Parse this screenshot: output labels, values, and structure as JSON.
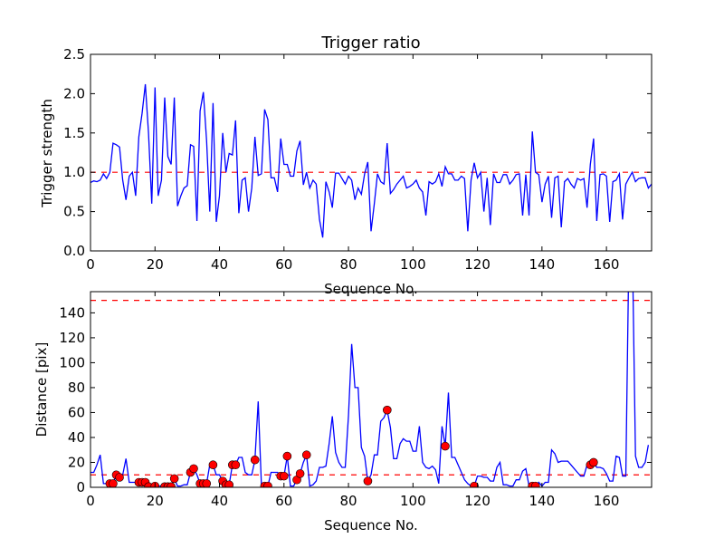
{
  "chart_data": [
    {
      "type": "line",
      "title": "Trigger ratio",
      "xlabel": "Sequence No.",
      "ylabel": "Trigger strength",
      "xlim": [
        0,
        174
      ],
      "ylim": [
        0,
        2.5
      ],
      "xticks": [
        "0",
        "20",
        "40",
        "60",
        "80",
        "100",
        "120",
        "140",
        "160"
      ],
      "yticks": [
        "0.0",
        "0.5",
        "1.0",
        "1.5",
        "2.0",
        "2.5"
      ],
      "threshold": 1.0,
      "colors": {
        "line": "#0000ff",
        "threshold": "#ff0000"
      },
      "values": [
        0.87,
        0.89,
        0.88,
        0.9,
        0.98,
        0.92,
        1.0,
        1.37,
        1.35,
        1.32,
        0.9,
        0.65,
        0.95,
        1.0,
        0.7,
        1.45,
        1.75,
        2.12,
        1.5,
        0.6,
        2.08,
        0.7,
        0.9,
        1.95,
        1.2,
        1.1,
        1.95,
        0.57,
        0.7,
        0.8,
        0.83,
        1.35,
        1.33,
        0.38,
        1.78,
        2.02,
        1.4,
        0.5,
        1.88,
        0.37,
        0.7,
        1.5,
        1.0,
        1.24,
        1.22,
        1.66,
        0.48,
        0.9,
        0.93,
        0.5,
        0.8,
        1.45,
        0.96,
        0.98,
        1.8,
        1.67,
        0.93,
        0.93,
        0.75,
        1.43,
        1.1,
        1.1,
        0.95,
        0.95,
        1.27,
        1.4,
        0.84,
        1.0,
        0.8,
        0.9,
        0.85,
        0.4,
        0.17,
        0.88,
        0.75,
        0.55,
        0.99,
        0.99,
        0.92,
        0.85,
        0.95,
        0.9,
        0.65,
        0.8,
        0.72,
        0.98,
        1.13,
        0.25,
        0.6,
        0.98,
        0.88,
        0.85,
        1.37,
        0.73,
        0.78,
        0.85,
        0.9,
        0.95,
        0.8,
        0.82,
        0.85,
        0.9,
        0.8,
        0.75,
        0.45,
        0.88,
        0.85,
        0.88,
        0.98,
        0.82,
        1.07,
        0.98,
        0.98,
        0.9,
        0.9,
        0.95,
        0.92,
        0.25,
        0.9,
        1.12,
        0.93,
        1.0,
        0.5,
        0.93,
        0.33,
        0.98,
        0.87,
        0.87,
        0.97,
        0.97,
        0.85,
        0.9,
        0.97,
        0.98,
        0.45,
        0.97,
        0.45,
        1.52,
        1.0,
        0.97,
        0.62,
        0.85,
        0.95,
        0.42,
        0.93,
        0.95,
        0.3,
        0.88,
        0.92,
        0.85,
        0.8,
        0.92,
        0.9,
        0.92,
        0.55,
        1.1,
        1.43,
        0.38,
        0.97,
        0.98,
        0.95,
        0.37,
        0.88,
        0.9,
        0.98,
        0.4,
        0.85,
        0.93,
        1.0,
        0.88,
        0.92,
        0.93,
        0.93,
        0.8,
        0.85
      ]
    },
    {
      "type": "line",
      "xlabel": "Sequence No.",
      "ylabel": "Distance [pix]",
      "xlim": [
        0,
        174
      ],
      "ylim": [
        0,
        157
      ],
      "xticks": [
        "0",
        "20",
        "40",
        "60",
        "80",
        "100",
        "120",
        "140",
        "160"
      ],
      "yticks": [
        "0",
        "20",
        "40",
        "60",
        "80",
        "100",
        "120",
        "140"
      ],
      "thresholds": [
        10,
        150
      ],
      "colors": {
        "line": "#0000ff",
        "threshold": "#ff0000",
        "marker": "#ff0000"
      },
      "values": [
        12,
        12,
        18,
        26,
        3,
        3,
        3,
        3,
        10,
        8,
        10,
        23,
        4,
        4,
        4,
        4,
        4,
        4,
        1,
        1,
        1,
        1,
        1,
        0.5,
        0.5,
        0.5,
        7,
        1,
        1,
        2,
        2,
        12,
        15,
        10,
        3,
        3,
        3,
        18,
        18,
        10,
        10,
        5,
        2,
        2,
        18,
        18,
        24,
        24,
        12,
        10,
        10,
        22,
        69,
        1,
        1,
        1,
        12,
        12,
        12,
        9,
        9,
        25,
        1,
        1,
        6,
        11,
        20,
        26,
        1,
        2,
        5,
        16,
        16,
        17,
        35,
        57,
        28,
        20,
        16,
        16,
        58,
        115,
        80,
        80,
        32,
        25,
        5,
        10,
        26,
        26,
        53,
        56,
        62,
        48,
        23,
        23,
        35,
        39,
        37,
        37,
        29,
        29,
        49,
        20,
        16,
        15,
        17,
        14,
        3,
        49,
        33,
        76,
        24,
        24,
        18,
        12,
        6,
        3,
        1,
        1,
        9,
        9,
        8,
        8,
        5,
        5,
        16,
        20,
        2,
        2,
        1,
        1,
        6,
        6,
        13,
        15,
        1,
        1,
        1,
        4,
        1,
        4,
        4,
        30,
        27,
        20,
        21,
        21,
        21,
        18,
        15,
        12,
        9,
        9,
        18,
        18,
        20,
        16,
        16,
        15,
        11,
        5,
        5,
        25,
        24,
        9,
        9,
        200,
        200,
        25,
        16,
        16,
        20,
        34
      ],
      "markers": [
        [
          6,
          3
        ],
        [
          7,
          3
        ],
        [
          8,
          10
        ],
        [
          9,
          8
        ],
        [
          15,
          4
        ],
        [
          16,
          4
        ],
        [
          17,
          4
        ],
        [
          18,
          0.5
        ],
        [
          20,
          1
        ],
        [
          23,
          0.5
        ],
        [
          24,
          0.5
        ],
        [
          25,
          0.5
        ],
        [
          26,
          7
        ],
        [
          31,
          12
        ],
        [
          32,
          15
        ],
        [
          34,
          3
        ],
        [
          35,
          3
        ],
        [
          36,
          3
        ],
        [
          38,
          18
        ],
        [
          41,
          5
        ],
        [
          42,
          2
        ],
        [
          43,
          2
        ],
        [
          44,
          18
        ],
        [
          45,
          18
        ],
        [
          51,
          22
        ],
        [
          54,
          1
        ],
        [
          55,
          1
        ],
        [
          59,
          9
        ],
        [
          60,
          9
        ],
        [
          61,
          25
        ],
        [
          64,
          6
        ],
        [
          65,
          11
        ],
        [
          67,
          26
        ],
        [
          86,
          5
        ],
        [
          92,
          62
        ],
        [
          110,
          33
        ],
        [
          119,
          1
        ],
        [
          137,
          1
        ],
        [
          138,
          1
        ],
        [
          155,
          18
        ],
        [
          156,
          20
        ]
      ]
    }
  ]
}
